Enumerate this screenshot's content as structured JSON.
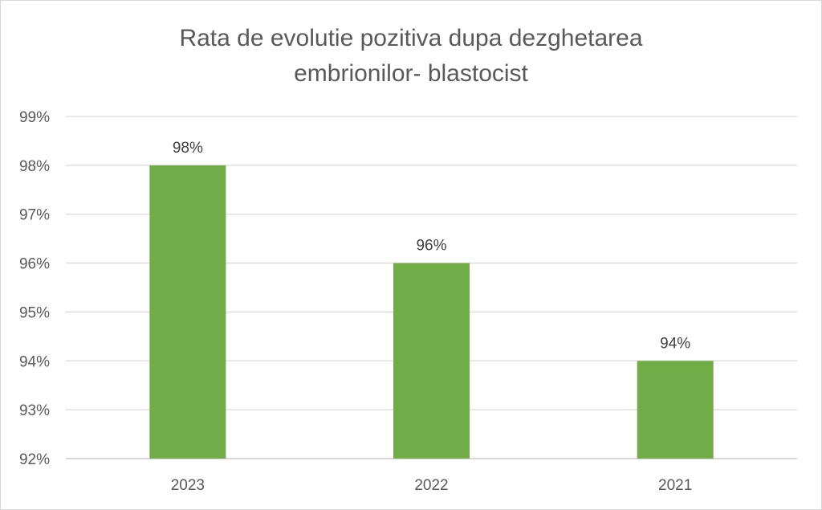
{
  "chart_data": {
    "type": "bar",
    "title_lines": [
      "Rata de evolutie pozitiva dupa dezghetarea",
      "embrionilor- blastocist"
    ],
    "categories": [
      "2023",
      "2022",
      "2021"
    ],
    "values": [
      98,
      96,
      94
    ],
    "data_labels": [
      "98%",
      "96%",
      "94%"
    ],
    "ylim": [
      92,
      99
    ],
    "yticks": [
      92,
      93,
      94,
      95,
      96,
      97,
      98,
      99
    ],
    "ytick_labels": [
      "92%",
      "93%",
      "94%",
      "95%",
      "96%",
      "97%",
      "98%",
      "99%"
    ],
    "grid": true,
    "legend": "none",
    "colors": {
      "bar": "#70AD47",
      "grid": "#d9d9d9",
      "text": "#595959"
    }
  }
}
